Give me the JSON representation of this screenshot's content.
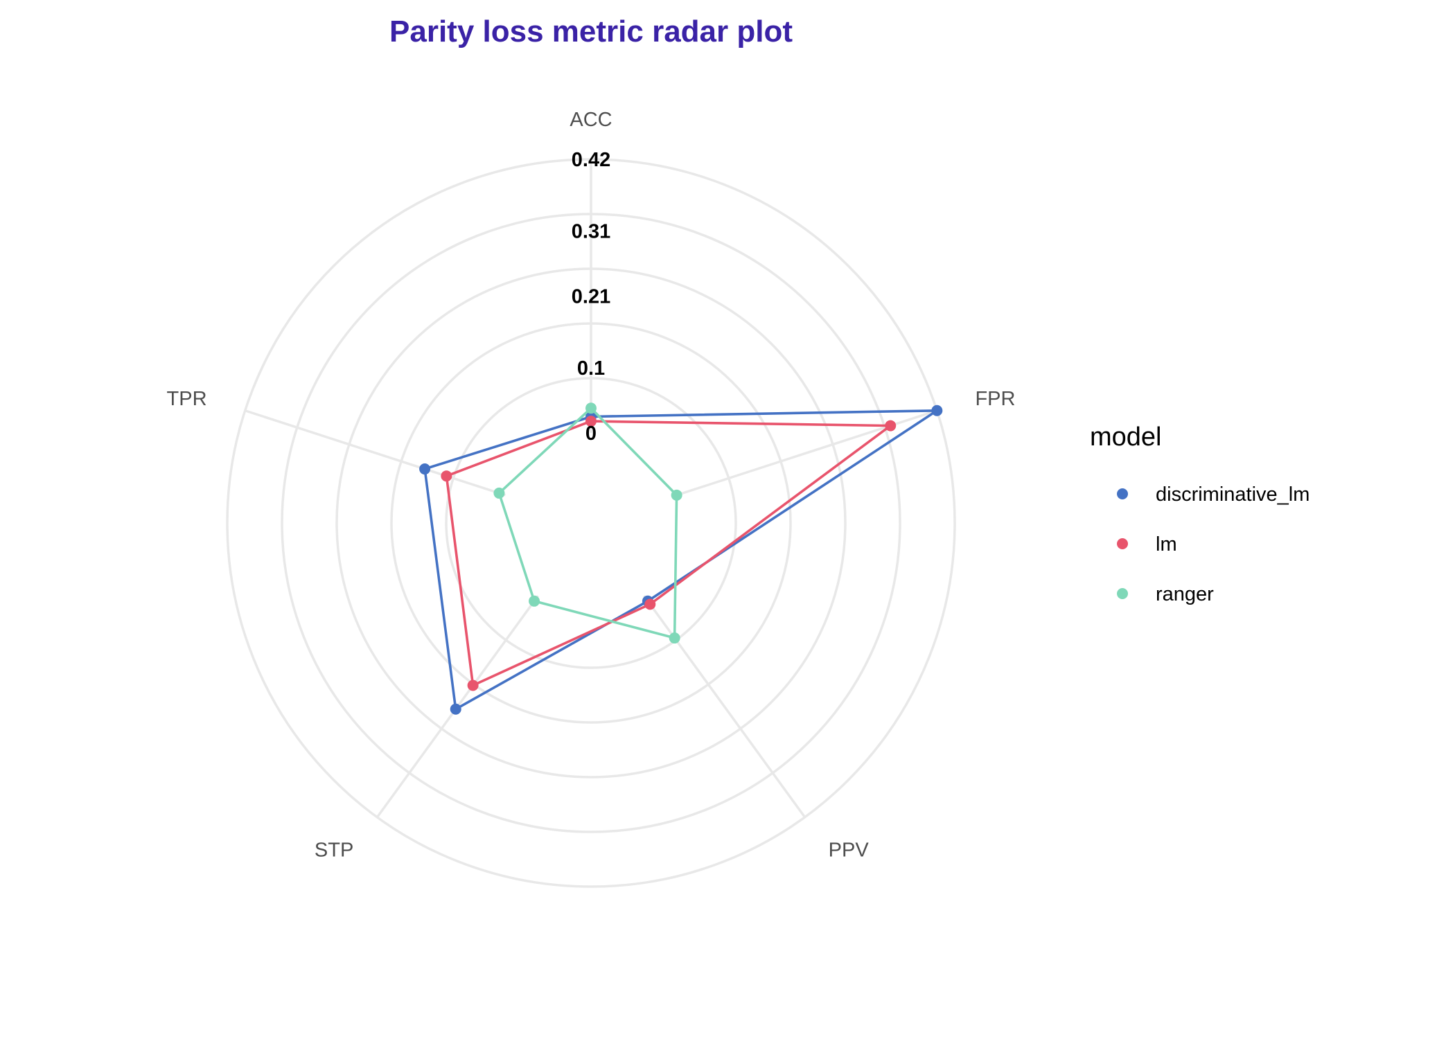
{
  "chart_data": {
    "type": "radar",
    "title": "Parity loss metric radar plot",
    "title_color": "#3a22a6",
    "axes": [
      "ACC",
      "FPR",
      "PPV",
      "STP",
      "TPR"
    ],
    "radial_ticks": [
      "0",
      "0.1",
      "0.21",
      "0.31",
      "0.42"
    ],
    "rlim": [
      0,
      0.42
    ],
    "grid": true,
    "grid_color": "#e8e8e8",
    "legend": {
      "title": "model",
      "position": "right"
    },
    "series": [
      {
        "name": "discriminative_lm",
        "color": "#4472c4",
        "values": [
          0.025,
          0.42,
          0.01,
          0.215,
          0.13
        ]
      },
      {
        "name": "lm",
        "color": "#e8546c",
        "values": [
          0.018,
          0.345,
          0.016,
          0.17,
          0.095
        ]
      },
      {
        "name": "ranger",
        "color": "#7fd8b8",
        "values": [
          0.038,
          0.0,
          0.08,
          0.01,
          0.01
        ]
      }
    ]
  }
}
